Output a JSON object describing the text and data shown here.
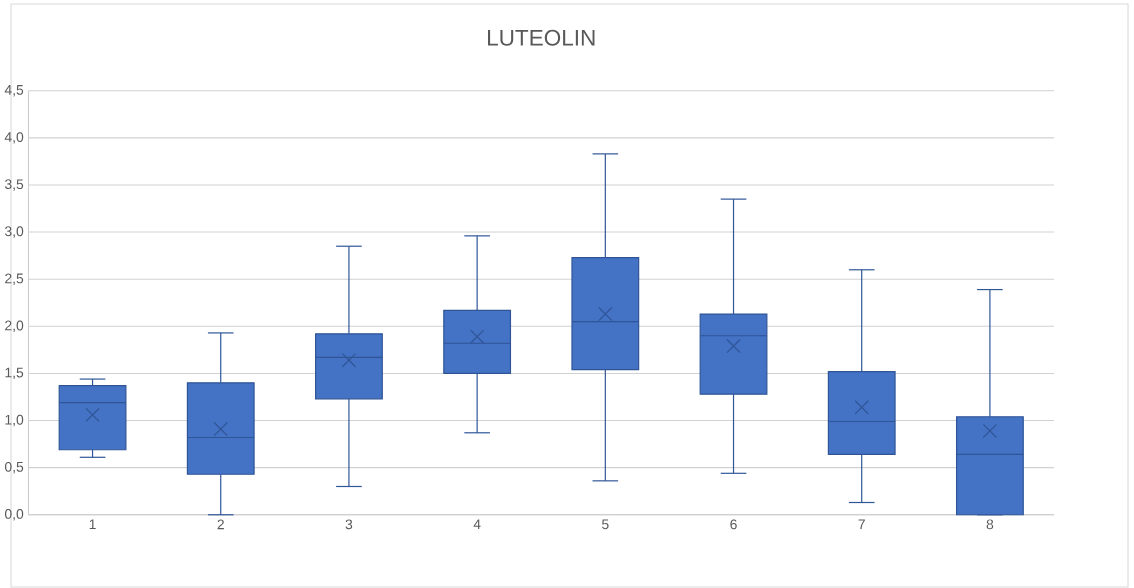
{
  "chart_data": {
    "type": "box",
    "title": "LUTEOLIN",
    "categories": [
      "1",
      "2",
      "3",
      "4",
      "5",
      "6",
      "7",
      "8"
    ],
    "boxes": [
      {
        "low": 0.61,
        "q1": 0.69,
        "median": 1.19,
        "q3": 1.37,
        "high": 1.44,
        "mean": 1.06
      },
      {
        "low": 0.0,
        "q1": 0.43,
        "median": 0.82,
        "q3": 1.4,
        "high": 1.93,
        "mean": 0.91
      },
      {
        "low": 0.3,
        "q1": 1.23,
        "median": 1.67,
        "q3": 1.92,
        "high": 2.85,
        "mean": 1.64
      },
      {
        "low": 0.87,
        "q1": 1.5,
        "median": 1.82,
        "q3": 2.17,
        "high": 2.96,
        "mean": 1.89
      },
      {
        "low": 0.36,
        "q1": 1.54,
        "median": 2.05,
        "q3": 2.73,
        "high": 3.83,
        "mean": 2.13
      },
      {
        "low": 0.44,
        "q1": 1.28,
        "median": 1.9,
        "q3": 2.13,
        "high": 3.35,
        "mean": 1.79
      },
      {
        "low": 0.13,
        "q1": 0.64,
        "median": 0.99,
        "q3": 1.52,
        "high": 2.6,
        "mean": 1.14
      },
      {
        "low": 0.0,
        "q1": 0.0,
        "median": 0.64,
        "q3": 1.04,
        "high": 2.39,
        "mean": 0.89
      }
    ],
    "color": "#4472c4",
    "ylim": [
      0,
      4.5
    ],
    "yticks": [
      {
        "value": 0,
        "label": "0,0"
      },
      {
        "value": 0.5,
        "label": "0,5"
      },
      {
        "value": 1,
        "label": "1,0"
      },
      {
        "value": 1.5,
        "label": "1,5"
      },
      {
        "value": 2,
        "label": "2,0"
      },
      {
        "value": 2.5,
        "label": "2,5"
      },
      {
        "value": 3,
        "label": "3,0"
      },
      {
        "value": 3.5,
        "label": "3,5"
      },
      {
        "value": 4,
        "label": "4,0"
      },
      {
        "value": 4.5,
        "label": "4,5"
      }
    ],
    "grid": "y"
  }
}
